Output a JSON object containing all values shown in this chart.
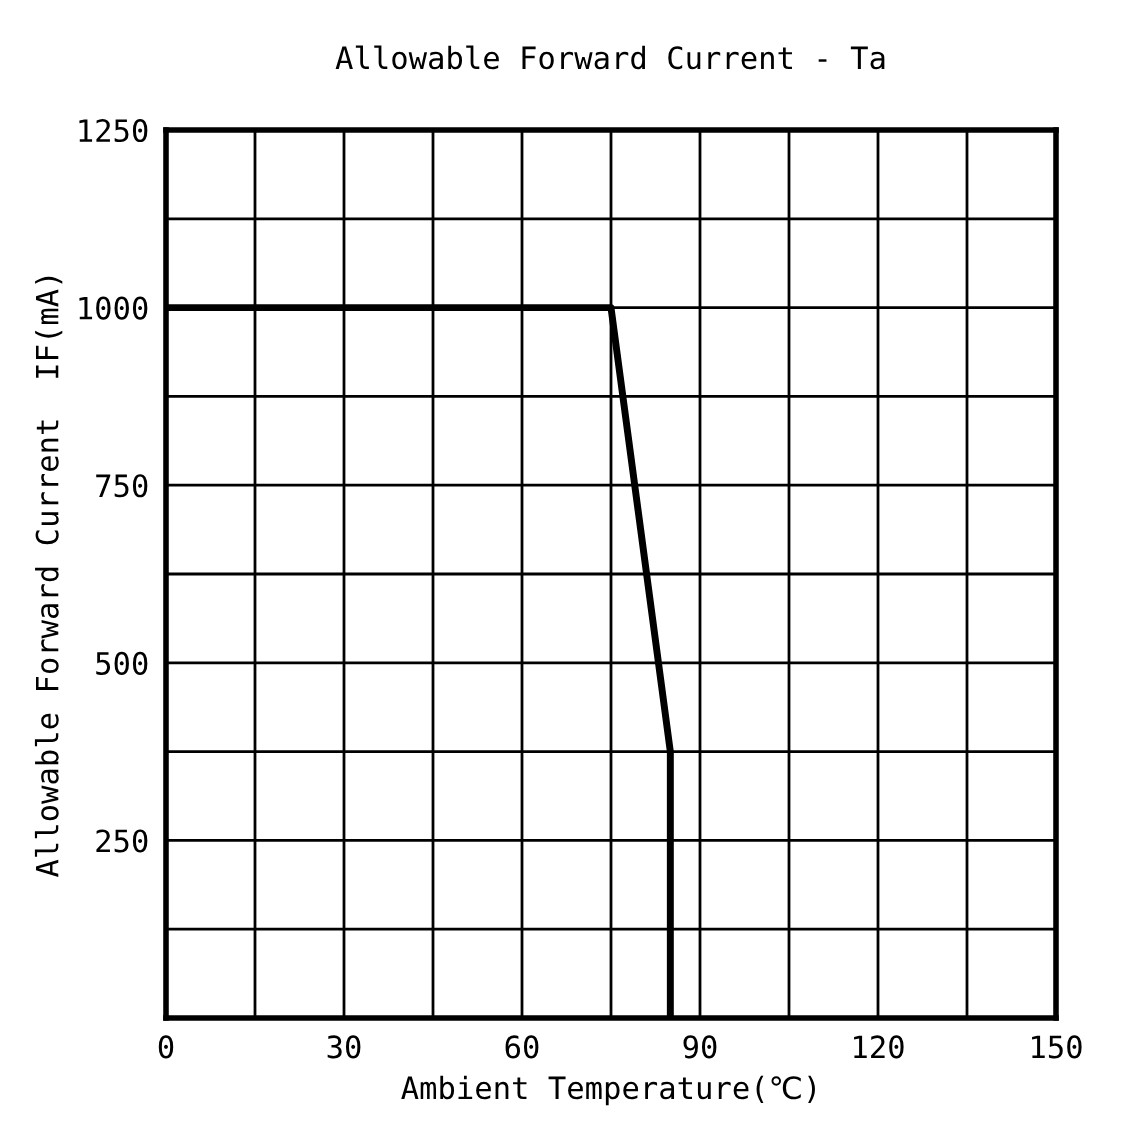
{
  "chart_data": {
    "type": "line",
    "title": "Allowable Forward Current - Ta",
    "xlabel": "Ambient Temperature(℃)",
    "ylabel": "Allowable Forward Current  IF(mA)",
    "x": [
      0,
      75,
      85,
      85
    ],
    "series": [
      {
        "color": "#000000",
        "values": [
          1000,
          1000,
          375,
          0
        ]
      }
    ],
    "xlim": [
      0,
      150
    ],
    "ylim": [
      0,
      1250
    ],
    "xticks": [
      0,
      {
        "value": 15,
        "label": null
      },
      30,
      {
        "value": 45,
        "label": null
      },
      60,
      {
        "value": 75,
        "label": null
      },
      90,
      {
        "value": 105,
        "label": null
      },
      120,
      {
        "value": 135,
        "label": null
      },
      150
    ],
    "yticks": [
      {
        "value": 0,
        "label": null
      },
      {
        "value": 125,
        "label": null
      },
      250,
      {
        "value": 375,
        "label": null
      },
      500,
      {
        "value": 625,
        "label": null
      },
      750,
      {
        "value": 875,
        "label": null
      },
      1000,
      {
        "value": 1125,
        "label": null
      },
      1250
    ],
    "grid": true,
    "marker": "none",
    "line_style": "solid"
  }
}
